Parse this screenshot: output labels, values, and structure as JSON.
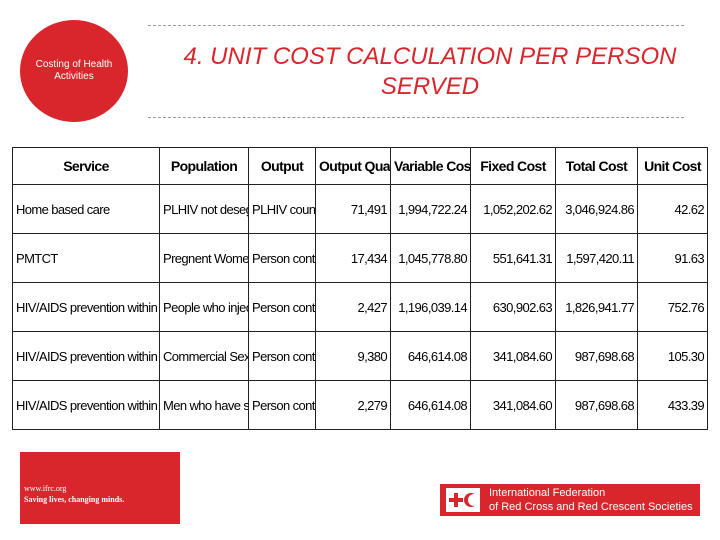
{
  "badge": {
    "text": "Costing of Health Activities"
  },
  "title": "4. UNIT COST CALCULATION PER PERSON SERVED",
  "table": {
    "headers": [
      "Service",
      "Population",
      "Output",
      "Output Quantity",
      "Variable Cost",
      "Fixed Cost",
      "Total Cost",
      "Unit Cost"
    ],
    "rows": [
      [
        "Home based care",
        "PLHIV not desegregated",
        "PLHIV counselled",
        "71,491",
        "1,994,722.24",
        "1,052,202.62",
        "3,046,924.86",
        "42.62"
      ],
      [
        "PMTCT",
        "Pregnent Women deliver",
        "Person contacted",
        "17,434",
        "1,045,778.80",
        "551,641.31",
        "1,597,420.11",
        "91.63"
      ],
      [
        "HIV/AIDS prevention within IDUs",
        "People who injects drug",
        "Person contacted",
        "2,427",
        "1,196,039.14",
        "630,902.63",
        "1,826,941.77",
        "752.76"
      ],
      [
        "HIV/AIDS prevention within SWs",
        "Commercial Sex Worker",
        "Person contacted",
        "9,380",
        "646,614.08",
        "341,084.60",
        "987,698.68",
        "105.30"
      ],
      [
        "HIV/AIDS prevention within MSMs",
        "Men who have sex with m",
        "Person contacted",
        "2,279",
        "646,614.08",
        "341,084.60",
        "987,698.68",
        "433.39"
      ]
    ]
  },
  "footer": {
    "url": "www.ifrc.org",
    "tagline": "Saving lives, changing minds.",
    "org_line1": "International Federation",
    "org_line2": "of Red Cross and Red Crescent Societies"
  },
  "colors": {
    "accent": "#d8262c"
  }
}
